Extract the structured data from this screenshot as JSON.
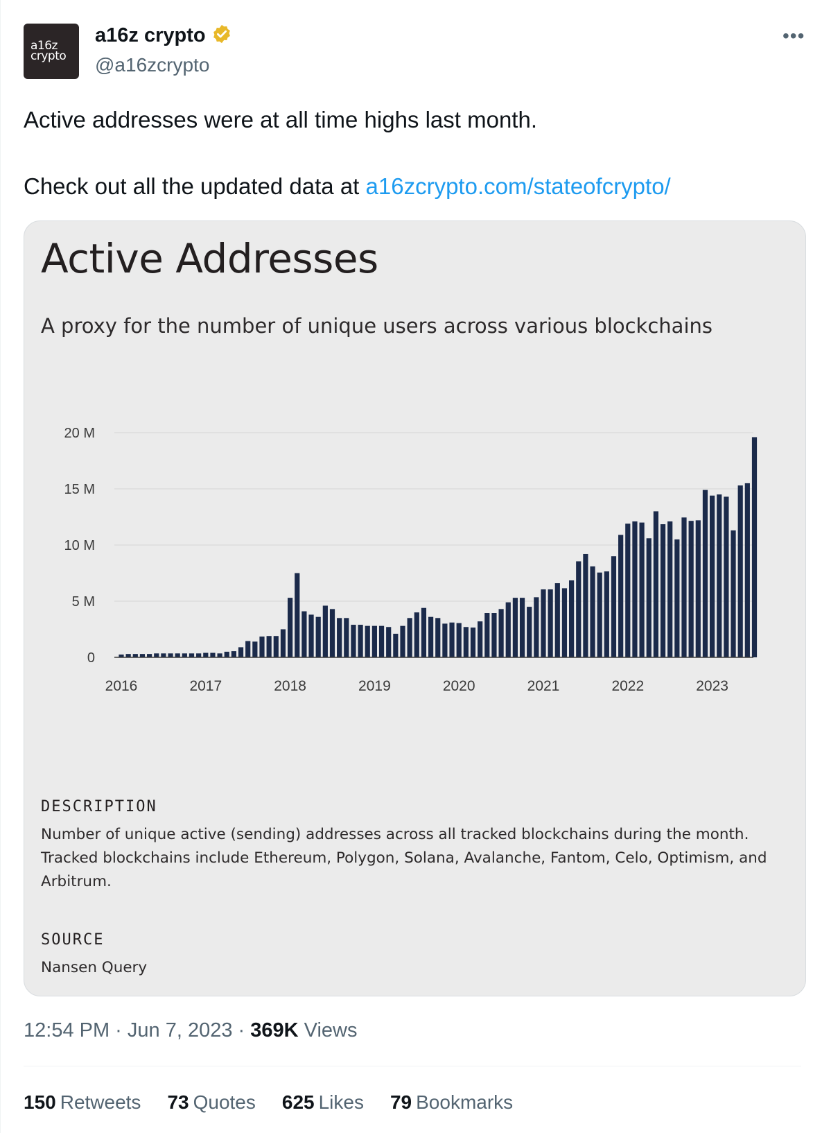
{
  "author": {
    "avatar_line1": "a16z",
    "avatar_line2": "crypto",
    "name": "a16z crypto",
    "handle": "@a16zcrypto",
    "verified_color": "#e8b829"
  },
  "tweet": {
    "line1": "Active addresses were at all time highs last month.",
    "line2_prefix": "Check out all the updated data at ",
    "link": "a16zcrypto.com/stateofcrypto/",
    "link_color": "#1d9bf0"
  },
  "card": {
    "title": "Active Addresses",
    "subtitle": "A proxy for the number of unique users across various blockchains",
    "description_heading": "DESCRIPTION",
    "description": "Number of unique active (sending) addresses across all tracked blockchains during the month. Tracked blockchains include Ethereum, Polygon, Solana, Avalanche, Fantom, Celo, Optimism, and Arbitrum.",
    "source_heading": "SOURCE",
    "source": "Nansen Query"
  },
  "chart_data": {
    "type": "bar",
    "bar_color": "#1b2a4a",
    "y_ticks": [
      "0",
      "5 M",
      "10 M",
      "15 M",
      "20 M"
    ],
    "ylim": [
      0,
      20
    ],
    "x_ticks": [
      "2016",
      "2017",
      "2018",
      "2019",
      "2020",
      "2021",
      "2022",
      "2023"
    ],
    "x_start_year": 2016,
    "values": [
      0.25,
      0.3,
      0.3,
      0.3,
      0.3,
      0.35,
      0.35,
      0.35,
      0.35,
      0.35,
      0.35,
      0.35,
      0.4,
      0.4,
      0.35,
      0.5,
      0.55,
      0.9,
      1.45,
      1.4,
      1.85,
      1.9,
      1.9,
      2.5,
      5.3,
      7.5,
      4.1,
      3.8,
      3.6,
      4.6,
      4.3,
      3.5,
      3.5,
      2.9,
      2.9,
      2.8,
      2.8,
      2.8,
      2.7,
      2.1,
      2.8,
      3.5,
      4.0,
      4.4,
      3.6,
      3.5,
      3.0,
      3.1,
      3.05,
      2.7,
      2.65,
      3.2,
      3.95,
      3.95,
      4.3,
      4.9,
      5.3,
      5.3,
      4.5,
      5.35,
      6.05,
      6.05,
      6.6,
      6.15,
      6.85,
      8.55,
      9.2,
      8.1,
      7.55,
      7.65,
      9.0,
      10.9,
      11.9,
      12.1,
      12.0,
      10.6,
      13.0,
      11.85,
      12.1,
      10.5,
      12.45,
      12.15,
      12.2,
      14.9,
      14.4,
      14.5,
      14.3,
      11.3,
      15.3,
      15.5,
      19.6
    ],
    "xlabel": "",
    "ylabel": ""
  },
  "meta": {
    "time": "12:54 PM · Jun 7, 2023 · ",
    "views_count": "369K",
    "views_label": " Views"
  },
  "stats": [
    {
      "count": "150",
      "label": "Retweets"
    },
    {
      "count": "73",
      "label": "Quotes"
    },
    {
      "count": "625",
      "label": "Likes"
    },
    {
      "count": "79",
      "label": "Bookmarks"
    }
  ]
}
